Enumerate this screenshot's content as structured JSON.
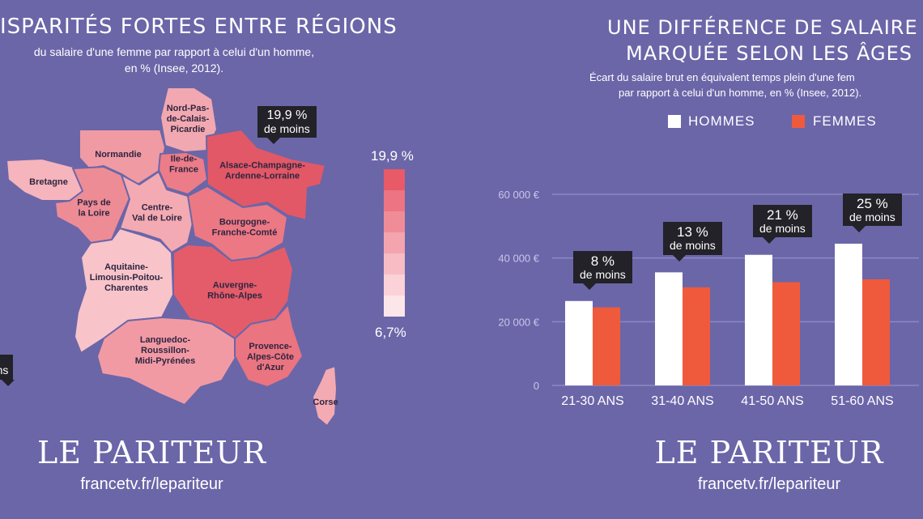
{
  "left": {
    "title": "ISPARITÉS FORTES ENTRE RÉGIONS",
    "subtitle_line1": "du salaire d'une femme par rapport à celui d'un homme,",
    "subtitle_line2": "en % (Insee, 2012).",
    "scale_top": "19,9 %",
    "scale_bottom": "6,7%",
    "scale_colors": [
      "#e85a68",
      "#ed7482",
      "#f08c98",
      "#f4a4ae",
      "#f7bcc4",
      "#fad2d8",
      "#fde6ea"
    ],
    "callout_pct": "19,9 %",
    "callout_label": "de moins",
    "partial_callout_text": "ns",
    "regions": [
      {
        "name": "Nord-Pas-de-Calais-Picardie",
        "lines": [
          "Nord-Pas-",
          "de-Calais-",
          "Picardie"
        ],
        "color": "#f2a8b0"
      },
      {
        "name": "Normandie",
        "lines": [
          "Normandie"
        ],
        "color": "#f09aa4"
      },
      {
        "name": "Ile-de-France",
        "lines": [
          "Ile-de-",
          "France"
        ],
        "color": "#ec7c88"
      },
      {
        "name": "Alsace-Champagne-Ardenne-Lorraine",
        "lines": [
          "Alsace-Champagne-",
          "Ardenne-Lorraine"
        ],
        "color": "#e25866"
      },
      {
        "name": "Bretagne",
        "lines": [
          "Bretagne"
        ],
        "color": "#f6b4bc"
      },
      {
        "name": "Pays de la Loire",
        "lines": [
          "Pays de",
          "la Loire"
        ],
        "color": "#ee8c96"
      },
      {
        "name": "Centre-Val de Loire",
        "lines": [
          "Centre-",
          "Val de Loire"
        ],
        "color": "#f4aab2"
      },
      {
        "name": "Bourgogne-Franche-Comté",
        "lines": [
          "Bourgogne-",
          "Franche-Comté"
        ],
        "color": "#ec7884"
      },
      {
        "name": "Aquitaine-Limousin-Poitou-Charentes",
        "lines": [
          "Aquitaine-",
          "Limousin-Poitou-",
          "Charentes"
        ],
        "color": "#f8c4ca"
      },
      {
        "name": "Auvergne-Rhône-Alpes",
        "lines": [
          "Auvergne-",
          "Rhône-Alpes"
        ],
        "color": "#e45c6a"
      },
      {
        "name": "Languedoc-Roussillon-Midi-Pyrénées",
        "lines": [
          "Languedoc-",
          "Roussillon-",
          "Midi-Pyrénées"
        ],
        "color": "#f29aa4"
      },
      {
        "name": "Provence-Alpes-Côte d'Azur",
        "lines": [
          "Provence-",
          "Alpes-Côte",
          "d'Azur"
        ],
        "color": "#ea7480"
      },
      {
        "name": "Corse",
        "lines": [
          "Corse"
        ],
        "color": "#f4aab2"
      }
    ],
    "brand": "LE PARITEUR",
    "url": "francetv.fr/lepariteur"
  },
  "right": {
    "title_line1": "UNE DIFFÉRENCE DE SALAIRE",
    "title_line2": "MARQUÉE SELON LES ÂGES",
    "subtitle_line1": "Écart du salaire brut en équivalent temps plein d'une fem",
    "subtitle_line2": "par rapport à celui d'un homme, en % (Insee, 2012).",
    "legend_hommes": "HOMMES",
    "legend_femmes": "FEMMES",
    "color_hommes": "#ffffff",
    "color_femmes": "#f05a3c",
    "brand": "LE PARITEUR",
    "url": "francetv.fr/lepariteur"
  },
  "chart_data": {
    "type": "bar",
    "categories": [
      "21-30 ANS",
      "31-40 ANS",
      "41-50 ANS",
      "51-60 ANS"
    ],
    "series": [
      {
        "name": "HOMMES",
        "values": [
          26500,
          35500,
          41000,
          44500
        ]
      },
      {
        "name": "FEMMES",
        "values": [
          24500,
          30800,
          32400,
          33300
        ]
      }
    ],
    "ylim": [
      0,
      60000
    ],
    "yticks": [
      0,
      20000,
      40000,
      60000
    ],
    "ytick_labels": [
      "0",
      "20 000 €",
      "40 000 €",
      "60 000 €"
    ],
    "annotations": [
      {
        "pct": "8 %",
        "label": "de moins"
      },
      {
        "pct": "13 %",
        "label": "de moins"
      },
      {
        "pct": "21 %",
        "label": "de moins"
      },
      {
        "pct": "25 %",
        "label": "de moins"
      }
    ],
    "grid": true,
    "legend": "top"
  }
}
